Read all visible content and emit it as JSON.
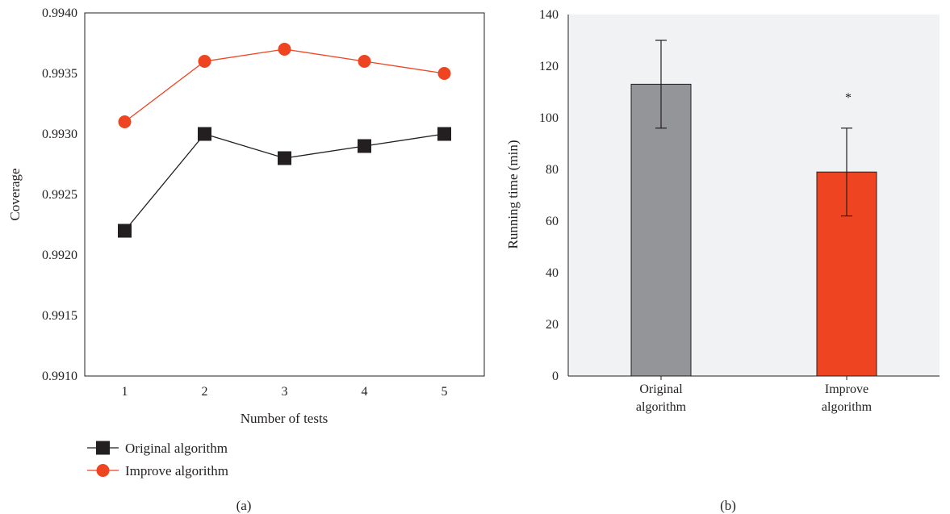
{
  "chart_data": [
    {
      "type": "line",
      "panel_label": "(a)",
      "title": "",
      "xlabel": "Number of tests",
      "ylabel": "Coverage",
      "x": [
        1,
        2,
        3,
        4,
        5
      ],
      "x_tick_labels": [
        "1",
        "2",
        "3",
        "4",
        "5"
      ],
      "xlim": [
        0.5,
        5.5
      ],
      "ylim": [
        0.991,
        0.994
      ],
      "y_ticks": [
        0.991,
        0.9915,
        0.992,
        0.9925,
        0.993,
        0.9935,
        0.994
      ],
      "y_tick_labels": [
        "0.9910",
        "0.9915",
        "0.9920",
        "0.9925",
        "0.9930",
        "0.9935",
        "0.9940"
      ],
      "grid": false,
      "legend": "bottom-left, below plot",
      "series": [
        {
          "name": "Original algorithm",
          "values": [
            0.9922,
            0.993,
            0.9928,
            0.9929,
            0.993
          ],
          "color": "#231f20",
          "marker": "square"
        },
        {
          "name": "Improve algorithm",
          "values": [
            0.9931,
            0.9936,
            0.9937,
            0.9936,
            0.9935
          ],
          "color": "#ee4422",
          "marker": "circle"
        }
      ]
    },
    {
      "type": "bar",
      "panel_label": "(b)",
      "title": "",
      "xlabel": "",
      "ylabel": "Running time (min)",
      "categories": [
        [
          "Original",
          "algorithm"
        ],
        [
          "Improve",
          "algorithm"
        ]
      ],
      "values": [
        113,
        79
      ],
      "error_low": [
        96,
        62
      ],
      "error_high": [
        130,
        96
      ],
      "bar_colors": [
        "#939598",
        "#ee4422"
      ],
      "significance": [
        null,
        "*"
      ],
      "ylim": [
        0,
        140
      ],
      "y_ticks": [
        0,
        20,
        40,
        60,
        80,
        100,
        120,
        140
      ],
      "y_tick_labels": [
        "0",
        "20",
        "40",
        "60",
        "80",
        "100",
        "120",
        "140"
      ],
      "plot_background": "#f1f2f3",
      "grid": false
    }
  ]
}
